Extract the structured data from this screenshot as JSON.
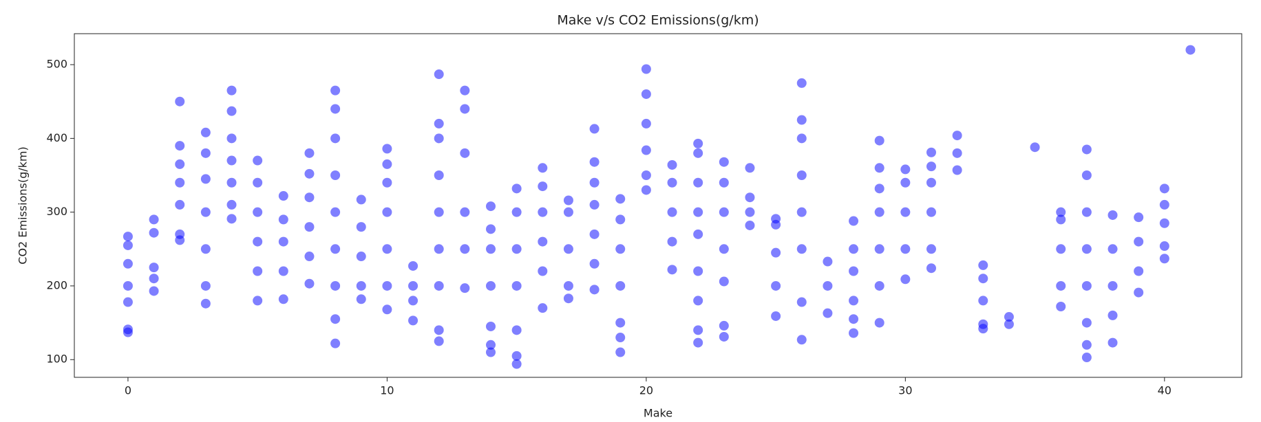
{
  "chart_data": {
    "type": "scatter",
    "title": "Make v/s CO2 Emissions(g/km)",
    "x_label": "Make",
    "y_label": "CO2 Emissions(g/km)",
    "color": "#0000ff",
    "x": [
      0,
      0,
      0,
      0,
      0,
      0,
      0,
      1,
      1,
      1,
      1,
      1,
      2,
      2,
      2,
      2,
      2,
      2,
      2,
      3,
      3,
      3,
      3,
      3,
      3,
      3,
      4,
      4,
      4,
      4,
      4,
      4,
      4,
      5,
      5,
      5,
      5,
      5,
      5,
      6,
      6,
      6,
      6,
      6,
      7,
      7,
      7,
      7,
      7,
      7,
      8,
      8,
      8,
      8,
      8,
      8,
      8,
      8,
      8,
      9,
      9,
      9,
      9,
      9,
      10,
      10,
      10,
      10,
      10,
      10,
      10,
      11,
      11,
      11,
      11,
      12,
      12,
      12,
      12,
      12,
      12,
      12,
      12,
      12,
      13,
      13,
      13,
      13,
      13,
      13,
      14,
      14,
      14,
      14,
      14,
      14,
      14,
      15,
      15,
      15,
      15,
      15,
      15,
      15,
      16,
      16,
      16,
      16,
      16,
      16,
      17,
      17,
      17,
      17,
      17,
      18,
      18,
      18,
      18,
      18,
      18,
      18,
      19,
      19,
      19,
      19,
      19,
      19,
      19,
      20,
      20,
      20,
      20,
      20,
      20,
      21,
      21,
      21,
      21,
      21,
      22,
      22,
      22,
      22,
      22,
      22,
      22,
      22,
      22,
      23,
      23,
      23,
      23,
      23,
      23,
      23,
      24,
      24,
      24,
      24,
      25,
      25,
      25,
      25,
      25,
      26,
      26,
      26,
      26,
      26,
      26,
      26,
      26,
      27,
      27,
      27,
      28,
      28,
      28,
      28,
      28,
      28,
      29,
      29,
      29,
      29,
      29,
      29,
      29,
      30,
      30,
      30,
      30,
      30,
      31,
      31,
      31,
      31,
      31,
      31,
      32,
      32,
      32,
      33,
      33,
      33,
      33,
      33,
      34,
      34,
      35,
      36,
      36,
      36,
      36,
      36,
      37,
      37,
      37,
      37,
      37,
      37,
      37,
      37,
      38,
      38,
      38,
      38,
      38,
      39,
      39,
      39,
      39,
      40,
      40,
      40,
      40,
      40,
      41
    ],
    "y": [
      137,
      141,
      178,
      200,
      230,
      255,
      267,
      193,
      210,
      225,
      272,
      290,
      262,
      270,
      310,
      340,
      365,
      390,
      450,
      176,
      200,
      250,
      300,
      345,
      380,
      408,
      291,
      310,
      340,
      370,
      400,
      437,
      465,
      180,
      220,
      260,
      300,
      340,
      370,
      182,
      220,
      260,
      290,
      322,
      203,
      240,
      280,
      320,
      352,
      380,
      122,
      155,
      200,
      250,
      300,
      350,
      400,
      440,
      465,
      182,
      200,
      240,
      280,
      317,
      168,
      200,
      250,
      300,
      340,
      365,
      386,
      153,
      180,
      200,
      227,
      125,
      140,
      200,
      250,
      300,
      350,
      400,
      420,
      487,
      197,
      250,
      300,
      380,
      440,
      465,
      110,
      120,
      145,
      200,
      250,
      277,
      308,
      94,
      105,
      140,
      200,
      250,
      300,
      332,
      170,
      220,
      260,
      300,
      335,
      360,
      183,
      200,
      250,
      300,
      316,
      195,
      230,
      270,
      310,
      340,
      368,
      413,
      110,
      130,
      150,
      200,
      250,
      290,
      318,
      330,
      350,
      384,
      420,
      460,
      494,
      222,
      260,
      300,
      340,
      364,
      123,
      140,
      180,
      220,
      270,
      300,
      340,
      380,
      393,
      131,
      146,
      206,
      250,
      300,
      340,
      368,
      282,
      300,
      320,
      360,
      159,
      200,
      245,
      283,
      291,
      127,
      178,
      250,
      300,
      350,
      400,
      425,
      475,
      163,
      200,
      233,
      136,
      155,
      180,
      220,
      250,
      288,
      150,
      200,
      250,
      300,
      332,
      360,
      397,
      209,
      250,
      300,
      340,
      358,
      224,
      250,
      300,
      340,
      362,
      381,
      357,
      380,
      404,
      142,
      148,
      180,
      210,
      228,
      148,
      158,
      388,
      172,
      200,
      250,
      290,
      300,
      103,
      120,
      150,
      200,
      250,
      300,
      350,
      385,
      123,
      160,
      200,
      250,
      296,
      191,
      220,
      260,
      293,
      237,
      254,
      285,
      310,
      332,
      520
    ],
    "xlim": [
      -2.07,
      42.98
    ],
    "xticks": [
      0,
      10,
      20,
      30,
      40
    ],
    "ylim": [
      76,
      542
    ],
    "yticks": [
      100,
      200,
      300,
      400,
      500
    ]
  }
}
